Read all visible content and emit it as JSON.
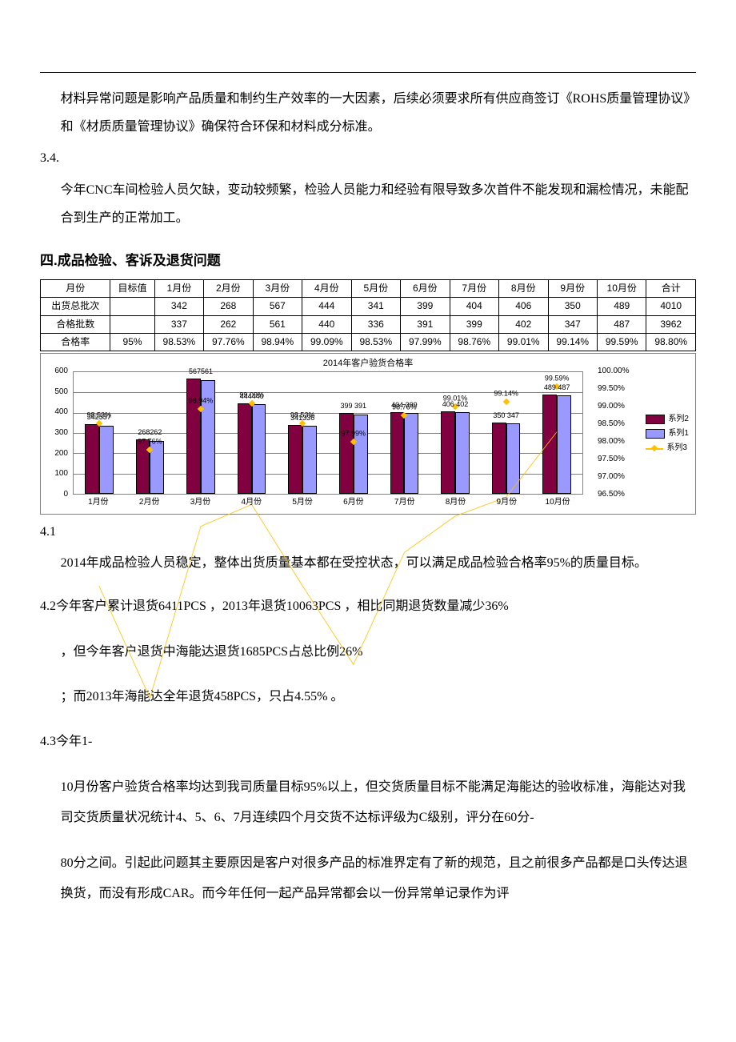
{
  "intro": {
    "p1": "材料异常问题是影响产品质量和制约生产效率的一大因素，后续必须要求所有供应商签订《ROHS质量管理协议》和《材质质量管理协议》确保符合环保和材料成分标准。",
    "sec34": "3.4.",
    "p2": "今年CNC车间检验人员欠缺，变动较频繁，检验人员能力和经验有限导致多次首件不能发现和漏检情况，未能配合到生产的正常加工。"
  },
  "heading4": "四.成品检验、客诉及退货问题",
  "table": {
    "headers": [
      "月份",
      "目标值",
      "1月份",
      "2月份",
      "3月份",
      "4月份",
      "5月份",
      "6月份",
      "7月份",
      "8月份",
      "9月份",
      "10月份",
      "合计"
    ],
    "rows": [
      {
        "label": "出货总批次",
        "target": "",
        "cells": [
          "342",
          "268",
          "567",
          "444",
          "341",
          "399",
          "404",
          "406",
          "350",
          "489",
          "4010"
        ]
      },
      {
        "label": "合格批数",
        "target": "",
        "cells": [
          "337",
          "262",
          "561",
          "440",
          "336",
          "391",
          "399",
          "402",
          "347",
          "487",
          "3962"
        ]
      },
      {
        "label": "合格率",
        "target": "95%",
        "cells": [
          "98.53%",
          "97.76%",
          "98.94%",
          "99.09%",
          "98.53%",
          "97.99%",
          "98.76%",
          "99.01%",
          "99.14%",
          "99.59%",
          "98.80%"
        ]
      }
    ]
  },
  "chart": {
    "title": "2014年客户验货合格率",
    "type": "bar+line",
    "categories": [
      "1月份",
      "2月份",
      "3月份",
      "4月份",
      "5月份",
      "6月份",
      "7月份",
      "8月份",
      "9月份",
      "10月份"
    ],
    "series2_values": [
      342,
      268,
      567,
      444,
      341,
      399,
      404,
      406,
      350,
      489
    ],
    "series1_values": [
      337,
      262,
      561,
      440,
      336,
      391,
      399,
      402,
      347,
      487
    ],
    "pct_values": [
      98.53,
      97.76,
      98.94,
      99.09,
      98.53,
      97.99,
      98.76,
      99.01,
      99.14,
      99.59
    ],
    "pct_labels": [
      "98.53%",
      "97.76%",
      "98.94%",
      "99.09%",
      "98.53%",
      "97.99%",
      "98.76%",
      "99.01%",
      "99.14%",
      "99.59%"
    ],
    "bar_label_pairs": [
      "342337",
      "268262",
      "567561",
      "444440",
      "341336",
      "399 391",
      "404 399",
      "406 402",
      "350 347",
      "489 487"
    ],
    "colors": {
      "series2": "#800040",
      "series1": "#9999ff",
      "series3": "#ffc000",
      "grid": "#808080",
      "background": "#ffffff",
      "border": "#000000"
    },
    "left_axis": {
      "min": 0,
      "max": 600,
      "step": 100
    },
    "right_axis": {
      "min": 96.5,
      "max": 100.0,
      "step": 0.5,
      "ticks": [
        "96.50%",
        "97.00%",
        "97.50%",
        "98.00%",
        "98.50%",
        "99.00%",
        "99.50%",
        "100.00%"
      ]
    },
    "legend": [
      "系列2",
      "系列1",
      "系列3"
    ]
  },
  "body": {
    "sec41": "4.1",
    "p41": "2014年成品检验人员稳定，整体出货质量基本都在受控状态，可以满足成品检验合格率95%的质量目标。",
    "p42a": "4.2今年客户累计退货6411PCS ，2013年退货10063PCS ，相比同期退货数量减少36%",
    "p42b": "，但今年客户退货中海能达退货1685PCS占总比例26%",
    "p42c": "；而2013年海能达全年退货458PCS，只占4.55% 。",
    "p43a": "4.3今年1-",
    "p43b": "10月份客户验货合格率均达到我司质量目标95%以上，但交货质量目标不能满足海能达的验收标准，海能达对我司交货质量状况统计4、5、6、7月连续四个月交货不达标评级为C级别，评分在60分-",
    "p43c": "80分之间。引起此问题其主要原因是客户对很多产品的标准界定有了新的规范，且之前很多产品都是口头传达退换货，而没有形成CAR。而今年任何一起产品异常都会以一份异常单记录作为评"
  }
}
